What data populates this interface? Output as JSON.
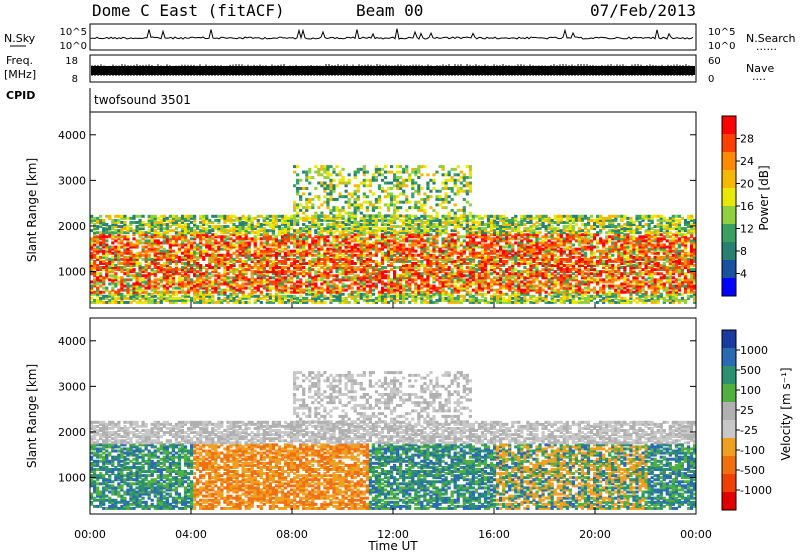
{
  "header": {
    "station": "Dome C East (fitACF)",
    "beam": "Beam 00",
    "date": "07/Feb/2013"
  },
  "side_labels": {
    "nsky": "N.Sky",
    "freq": "Freq.",
    "freq_unit": "[MHz]",
    "cpid": "CPID",
    "nsearch": "N.Search",
    "nave": "Nave",
    "dots": "......",
    "dots_short": "...."
  },
  "cpid_text": "twofsound 3501",
  "chart_data": [
    {
      "type": "line",
      "name": "noise",
      "left_ticks": [
        "10^5",
        "10^0"
      ],
      "right_ticks": [
        "10^5",
        "10^0"
      ]
    },
    {
      "type": "line",
      "name": "frequency",
      "left_ticks": [
        "18",
        "8"
      ],
      "right_ticks": [
        "60",
        "0"
      ]
    },
    {
      "type": "heatmap",
      "name": "power",
      "ylabel": "Slant Range [km]",
      "ylim": [
        200,
        4500
      ],
      "yticks": [
        "1000",
        "2000",
        "3000",
        "4000"
      ],
      "colorbar_label": "Power [dB]",
      "colorbar_ticks": [
        "28",
        "24",
        "20",
        "16",
        "12",
        "8",
        "4"
      ],
      "colorbar_colors": [
        "#ff0000",
        "#ff4000",
        "#ff8a00",
        "#f5b800",
        "#e8e800",
        "#90d040",
        "#3aa060",
        "#2a8070",
        "#1a50a0",
        "#0000ff"
      ]
    },
    {
      "type": "heatmap",
      "name": "velocity",
      "ylabel": "Slant Range [km]",
      "ylim": [
        200,
        4500
      ],
      "yticks": [
        "1000",
        "2000",
        "3000",
        "4000"
      ],
      "xlabel": "Time UT",
      "xticks": [
        "00:00",
        "04:00",
        "08:00",
        "12:00",
        "16:00",
        "20:00",
        "00:00"
      ],
      "xlim": [
        0,
        24
      ],
      "colorbar_label": "Velocity [m s⁻¹]",
      "colorbar_ticks": [
        "1000",
        "500",
        "100",
        "25",
        "-25",
        "-100",
        "-500",
        "-1000"
      ],
      "colorbar_colors": [
        "#1a3aa0",
        "#2a6ab0",
        "#2a9070",
        "#50b040",
        "#b0b0b0",
        "#c8c8c8",
        "#f0a020",
        "#f07010",
        "#f04000",
        "#e00000"
      ]
    }
  ]
}
